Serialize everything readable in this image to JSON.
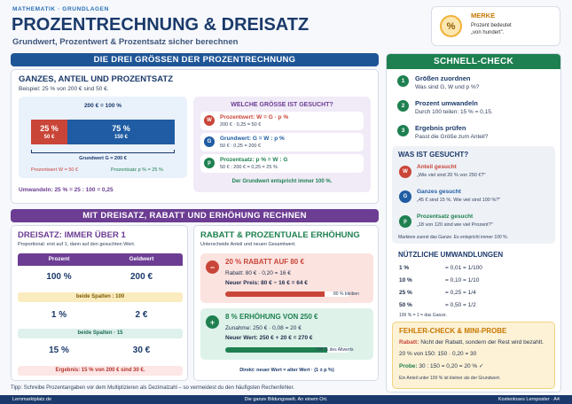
{
  "header": {
    "kicker": "MATHEMATIK · GRUNDLAGEN",
    "title": "PROZENTRECHNUNG & DREISATZ",
    "subtitle": "Grundwert, Prozentwert & Prozentsatz sicher berechnen"
  },
  "merke": {
    "icon": "%",
    "title": "MERKE",
    "text_line1": "Prozent bedeutet",
    "text_line2": "„von hundert\"."
  },
  "section1": {
    "bar": "DIE DREI GRÖSSEN DER PROZENTRECHNUNG",
    "heading": "GANZES, ANTEIL UND PROZENTSATZ",
    "example": "Beispiel: 25 % von 200 € sind 50 €.",
    "total_label": "200 € = 100 %",
    "seg1_pct": "25 %",
    "seg1_val": "50 €",
    "seg2_pct": "75 %",
    "seg2_val": "150 €",
    "grundwert": "Grundwert G = 200 €",
    "prozentwert": "Prozentwert W = 50 €",
    "prozentsatz": "Prozentsatz p % = 25 %",
    "umwandeln": "Umwandeln: 25 % = 25 : 100 = 0,25",
    "share": 0.25,
    "question": {
      "title": "WELCHE GRÖSSE IST GESUCHT?",
      "rows": [
        {
          "icon": "W",
          "title": "Prozentwert: W = G · p %",
          "sub": "200 € · 0,25 = 50 €",
          "color": "#c94538"
        },
        {
          "icon": "G",
          "title": "Grundwert: G = W : p %",
          "sub": "50 € : 0,25 = 200 €",
          "color": "#1f5ca3"
        },
        {
          "icon": "p",
          "title": "Prozentsatz: p % = W : G",
          "sub": "50 € : 200 € = 0,25 = 25 %",
          "color": "#1e8050"
        }
      ],
      "note": "Der Grundwert entspricht immer 100 %."
    }
  },
  "section2": {
    "bar": "MIT DREISATZ, RABATT UND ERHÖHUNG RECHNEN",
    "dreisatz": {
      "heading": "DREISATZ: IMMER ÜBER 1",
      "sub": "Proportional: erst auf 1, dann auf den gesuchten Wert.",
      "col1": "Prozent",
      "col2": "Geldwert",
      "r1a": "100 %",
      "r1b": "200 €",
      "step1": "beide Spalten : 100",
      "r2a": "1 %",
      "r2b": "2 €",
      "step2": "beide Spalten · 15",
      "r3a": "15 %",
      "r3b": "30 €",
      "result": "Ergebnis: 15 % von 200 € sind 30 €."
    },
    "rabatt": {
      "heading": "RABATT & PROZENTUALE ERHÖHUNG",
      "sub": "Unterscheide Anteil und neuen Gesamtwert.",
      "r_title": "20 % RABATT AUF 80 €",
      "r_line1": "Rabatt: 80 € · 0,20 = 16 €",
      "r_line2": "Neuer Preis: 80 € − 16 € = 64 €",
      "r_bar_label": "80 % bleiben",
      "r_fill": 0.8,
      "e_title": "8 % ERHÖHUNG VON 250 €",
      "e_line1": "Zunahme: 250 € · 0,08 = 20 €",
      "e_line2": "Neuer Wert: 250 € + 20 € = 270 €",
      "e_bar_label": "108 % des Altwerts",
      "e_fill": 0.82,
      "direct": "Direkt: neuer Wert = alter Wert · (1 ± p %)"
    }
  },
  "tip": "Tipp: Schreibe Prozentangaben vor dem Multiplizieren als Dezimalzahl – so vermeidest du den häufigsten Rechenfehler.",
  "right": {
    "bar": "SCHNELL-CHECK",
    "steps": [
      {
        "n": "1",
        "title": "Größen zuordnen",
        "sub": "Was sind G, W und p %?"
      },
      {
        "n": "2",
        "title": "Prozent umwandeln",
        "sub": "Durch 100 teilen: 15 % = 0,15."
      },
      {
        "n": "3",
        "title": "Ergebnis prüfen",
        "sub": "Passt die Größe zum Anteil?"
      }
    ],
    "gesucht": {
      "title": "WAS IST GESUCHT?",
      "items": [
        {
          "icon": "W",
          "title": "Anteil gesucht",
          "sub": "„Wie viel sind 20 % von 250 €?\"",
          "color": "#c94538"
        },
        {
          "icon": "G",
          "title": "Ganzes gesucht",
          "sub": "„45 € sind 15 %. Wie viel sind 100 %?\"",
          "color": "#1f5ca3"
        },
        {
          "icon": "p",
          "title": "Prozentsatz gesucht",
          "sub": "„18 von 120 sind wie viel Prozent?\"",
          "color": "#1e8050"
        }
      ],
      "note": "Markiere zuerst das Ganze. Es entspricht immer 100 %."
    },
    "conv": {
      "title": "NÜTZLICHE UMWANDLUNGEN",
      "rows": [
        {
          "a": "1 %",
          "b": "= 0,01 = 1/100"
        },
        {
          "a": "10 %",
          "b": "= 0,10 = 1/10"
        },
        {
          "a": "25 %",
          "b": "= 0,25 = 1/4"
        },
        {
          "a": "50 %",
          "b": "= 0,50 = 1/2"
        }
      ],
      "note": "100 % = 1 = das Ganze."
    },
    "fehler": {
      "title": "FEHLER-CHECK & MINI-PROBE",
      "l1_key": "Rabatt:",
      "l1_val": "Nicht der Rabatt, sondern der Rest wird bezahlt.",
      "l2": "20 % von 150: 150 · 0,20 = 30",
      "l3_key": "Probe:",
      "l3_val": "30 : 150 = 0,20 = 20 % ✓",
      "note": "Ein Anteil unter 100 % ist kleiner als der Grundwert."
    }
  },
  "footer": {
    "left": "Lernmarktplatz.de",
    "center": "Die ganze Bildungswelt. An einem Ort.",
    "right": "Kostenloses Lernposter · A4"
  }
}
